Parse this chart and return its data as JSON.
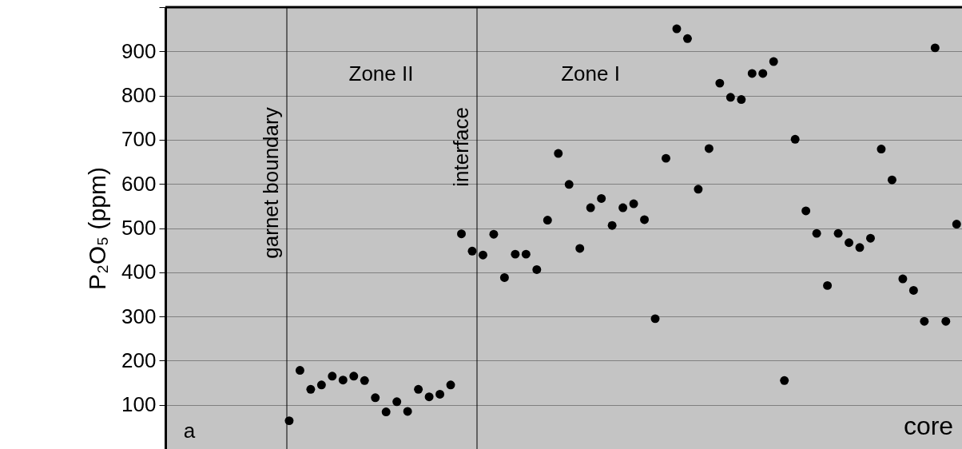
{
  "chart_data": {
    "type": "scatter",
    "ylabel": "P₂O₅ (ppm)",
    "categories": [
      null,
      null,
      null,
      null,
      null,
      null,
      null,
      null,
      null,
      null,
      null,
      null,
      null,
      null,
      null,
      null,
      null,
      null,
      null,
      null,
      null,
      null,
      null,
      null,
      null,
      null,
      null,
      null,
      null,
      null,
      null,
      null,
      null,
      null,
      null,
      null,
      null,
      null,
      null,
      null,
      null,
      null,
      null,
      null,
      null,
      null,
      null,
      null,
      null,
      null,
      null,
      null,
      null,
      null,
      null,
      null,
      null,
      null,
      null,
      null,
      null,
      null,
      null,
      null,
      null,
      null,
      null,
      null,
      null,
      null,
      null,
      null,
      null,
      null
    ],
    "values": [
      null,
      null,
      null,
      null,
      null,
      null,
      null,
      null,
      null,
      null,
      null,
      64,
      178,
      135,
      145,
      165,
      156,
      165,
      155,
      116,
      84,
      107,
      85,
      135,
      118,
      124,
      145,
      487,
      448,
      439,
      486,
      388,
      441,
      441,
      406,
      518,
      669,
      599,
      454,
      546,
      567,
      506,
      546,
      555,
      519,
      295,
      658,
      951,
      929,
      588,
      680,
      828,
      796,
      791,
      850,
      850,
      877,
      155,
      701,
      539,
      488,
      370,
      488,
      467,
      456,
      477,
      679,
      609,
      385,
      359,
      289,
      908,
      289,
      509
    ],
    "color": "#000000",
    "marker": "circle",
    "ylim": [
      0,
      1000
    ],
    "yticks": [
      100,
      200,
      300,
      400,
      500,
      600,
      700,
      800,
      900,
      {
        "value": 1000,
        "label": null
      }
    ],
    "tick_labels": "y",
    "grid": "y",
    "annotations": [
      "garnet boundary",
      "Zone II",
      "interface",
      "Zone I",
      "a",
      "core"
    ]
  }
}
